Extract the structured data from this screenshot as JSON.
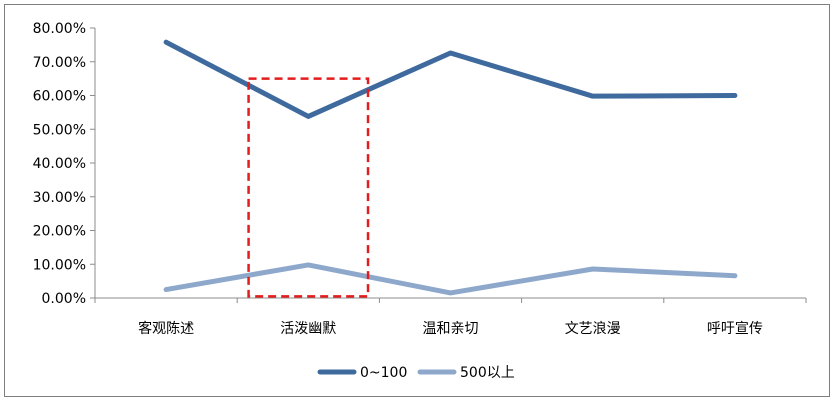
{
  "chart_data": {
    "type": "line",
    "title": "",
    "xlabel": "",
    "ylabel": "",
    "categories": [
      "客观陈述",
      "活泼幽默",
      "温和亲切",
      "文艺浪漫",
      "呼吁宣传"
    ],
    "y_ticks": [
      "0.00%",
      "10.00%",
      "20.00%",
      "30.00%",
      "40.00%",
      "50.00%",
      "60.00%",
      "70.00%",
      "80.00%"
    ],
    "ylim": [
      0,
      80
    ],
    "grid": false,
    "legend_position": "bottom",
    "series": [
      {
        "name": "0~100",
        "color": "#3f6a9e",
        "values": [
          75.8,
          53.8,
          72.6,
          59.8,
          60.0
        ]
      },
      {
        "name": "500以上",
        "color": "#8ea8cc",
        "values": [
          2.5,
          9.8,
          1.5,
          8.6,
          6.6
        ]
      }
    ],
    "annotations": [
      {
        "type": "dashed-box",
        "color": "#e31d1d",
        "category": "活泼幽默",
        "y_range": [
          0.5,
          65
        ]
      }
    ]
  }
}
